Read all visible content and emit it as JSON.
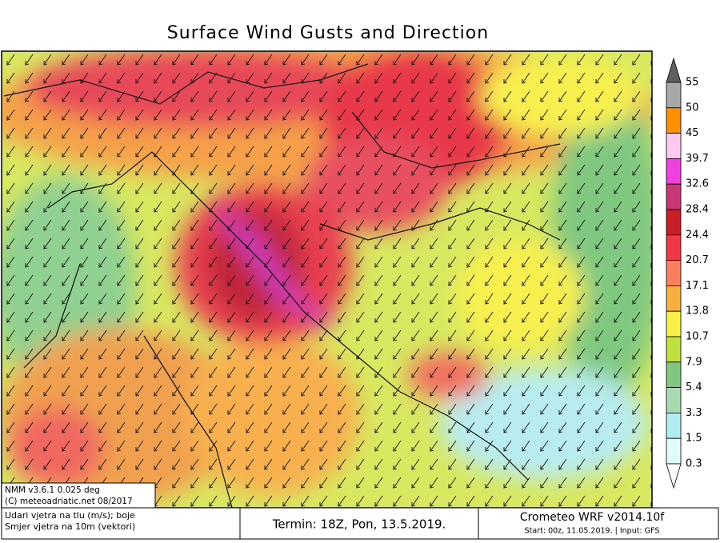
{
  "title": "Surface Wind Gusts and Direction",
  "colorbar": {
    "levels": [
      55,
      50,
      45,
      39.7,
      32.6,
      28.4,
      24.4,
      20.7,
      17.1,
      13.8,
      10.7,
      7.9,
      5.4,
      3.3,
      1.5,
      0.3
    ],
    "colors": [
      "#606060",
      "#a8a8a8",
      "#ff9000",
      "#ffc8f0",
      "#f040e0",
      "#c83878",
      "#c81e28",
      "#f03848",
      "#f88060",
      "#f8b040",
      "#f8f048",
      "#c0e040",
      "#80c880",
      "#a8dcb0",
      "#b0ecf4",
      "#e0fafa",
      "#ffffff"
    ]
  },
  "model_info": [
    "NMM v3.6.1 0.025 deg",
    "(C) meteoadriatic.net 08/2017"
  ],
  "legend_note": [
    "Udari vjetra na tlu (m/s); boje",
    "Smjer vjetra na 10m (vektori)"
  ],
  "valid_time": "Termin: 18Z, Pon, 13.5.2019.",
  "model_name": "Crometeo WRF v2014.10f",
  "run_info": "Start: 00z, 11.05.2019. | Input: GFS"
}
